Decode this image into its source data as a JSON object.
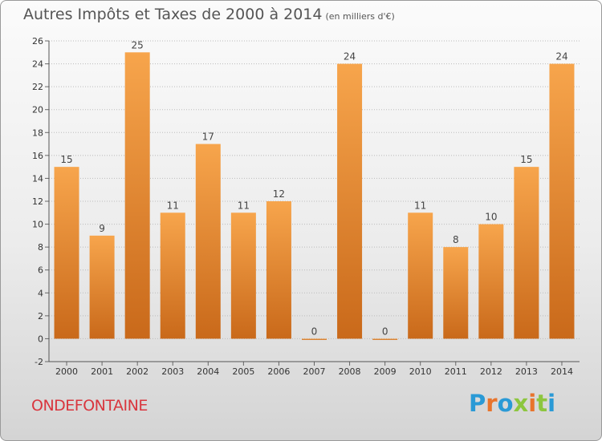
{
  "header": {
    "title": "Autres Impôts et Taxes de 2000 à 2014",
    "subtitle": "(en milliers d'€)"
  },
  "commune": "ONDEFONTAINE",
  "brand": {
    "text": "Proxiti",
    "colors": [
      "#2a9ad6",
      "#e8742c",
      "#2a9ad6",
      "#8dc63f",
      "#e8742c",
      "#8dc63f",
      "#2a9ad6"
    ]
  },
  "colors": {
    "bar_light": "#f7a54c",
    "bar_dark": "#c9691a",
    "grid": "#bbbbbb"
  },
  "chart_data": {
    "type": "bar",
    "title": "Autres Impôts et Taxes de 2000 à 2014",
    "subtitle": "(en milliers d'€)",
    "categories": [
      "2000",
      "2001",
      "2002",
      "2003",
      "2004",
      "2005",
      "2006",
      "2007",
      "2008",
      "2009",
      "2010",
      "2011",
      "2012",
      "2013",
      "2014"
    ],
    "values": [
      15,
      9,
      25,
      11,
      17,
      11,
      12,
      0,
      24,
      0,
      11,
      8,
      10,
      15,
      24
    ],
    "ylim": [
      -2,
      26
    ],
    "yticks": [
      -2,
      0,
      2,
      4,
      6,
      8,
      10,
      12,
      14,
      16,
      18,
      20,
      22,
      24,
      26
    ],
    "grid": true,
    "data_labels": true
  }
}
